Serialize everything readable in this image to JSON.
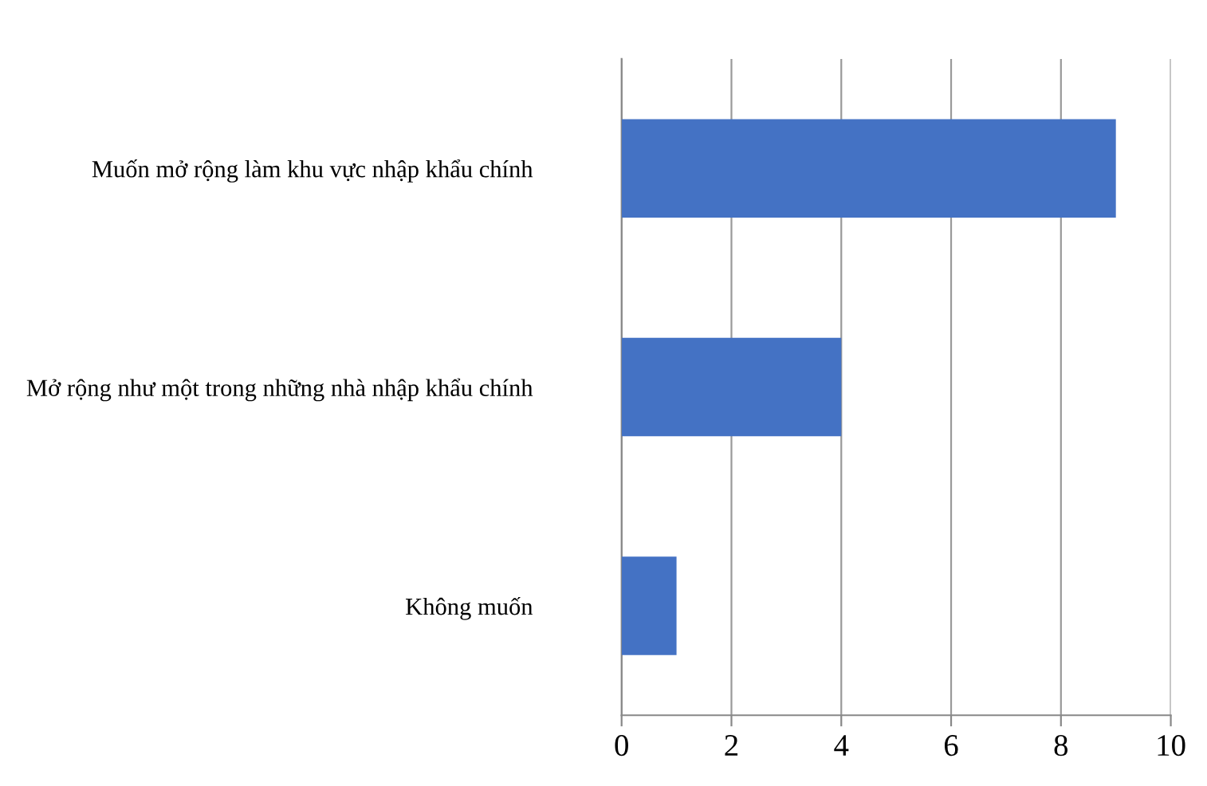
{
  "chart_data": {
    "type": "bar",
    "orientation": "horizontal",
    "categories": [
      "Muốn mở rộng làm khu vực nhập khẩu chính",
      "Mở rộng như một trong những nhà nhập khẩu chính",
      "Không muốn"
    ],
    "values": [
      9,
      4,
      1
    ],
    "color": "#4472c4",
    "xlim": [
      0,
      10
    ],
    "xticks": [
      0,
      2,
      4,
      6,
      8,
      10
    ],
    "grid": "x"
  }
}
